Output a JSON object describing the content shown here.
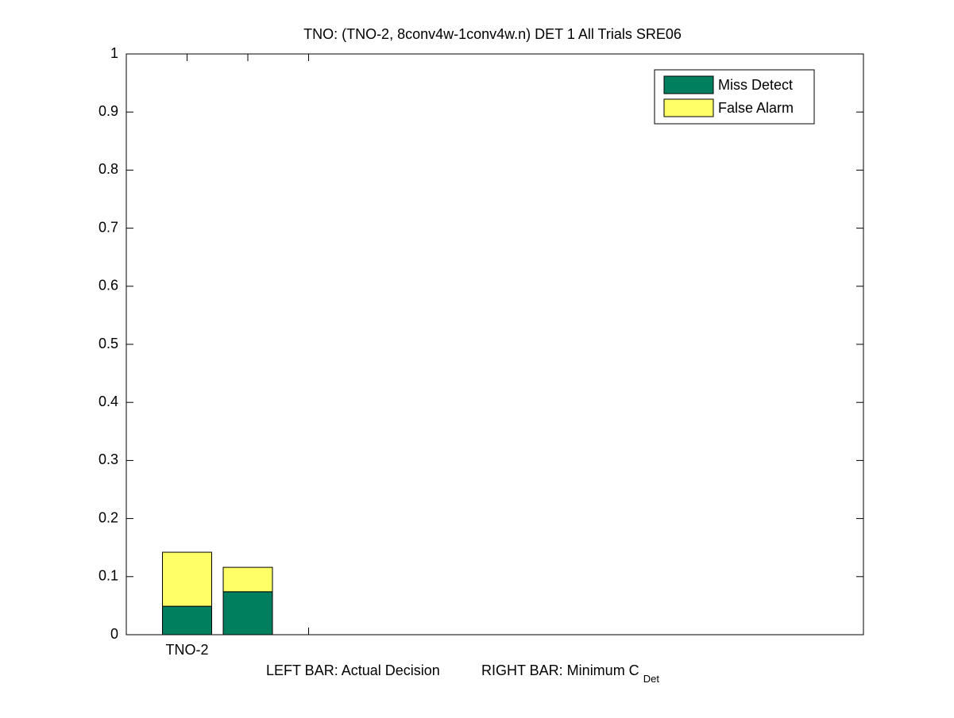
{
  "chart_data": {
    "type": "stacked-bar",
    "title": "TNO: (TNO-2, 8conv4w-1conv4w.n) DET 1 All Trials SRE06",
    "xlabel": {
      "left": "LEFT BAR: Actual Decision",
      "right": "RIGHT BAR: Minimum C",
      "subscript": "Det"
    },
    "categories": [
      "TNO-2",
      null,
      null
    ],
    "series": [
      {
        "name": "Miss Detect",
        "color": "#007f5f",
        "values": [
          0.049,
          0.074,
          null
        ]
      },
      {
        "name": "False Alarm",
        "color": "#ffff66",
        "values": [
          0.093,
          0.042,
          null
        ]
      }
    ],
    "xlim": [
      0,
      12.13
    ],
    "ylim": [
      0,
      1
    ],
    "yticks": [
      0,
      0.1,
      0.2,
      0.3,
      0.4,
      0.5,
      0.6,
      0.7,
      0.8,
      0.9,
      1
    ],
    "grid": false,
    "legend": "top-right"
  }
}
